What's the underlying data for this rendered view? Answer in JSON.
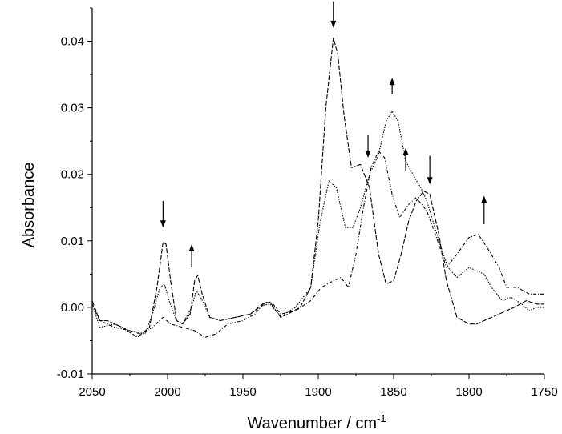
{
  "chart_data": {
    "type": "line",
    "title": "",
    "xlabel": "Wavenumber / cm",
    "xlabel_superscript": "-1",
    "ylabel": "Absorbance",
    "xlim": [
      2050,
      1750
    ],
    "ylim": [
      -0.01,
      0.045
    ],
    "x_reversed": true,
    "grid": false,
    "legend": "none",
    "x_ticks": [
      2050,
      2000,
      1950,
      1900,
      1850,
      1800,
      1750
    ],
    "x_tick_labels": [
      "2050",
      "2000",
      "1950",
      "1900",
      "1850",
      "1800",
      "1750"
    ],
    "y_ticks": [
      -0.01,
      0.0,
      0.01,
      0.02,
      0.03,
      0.04
    ],
    "y_tick_labels": [
      "-0.01",
      "0.00",
      "0.01",
      "0.02",
      "0.03",
      "0.04"
    ],
    "series": [
      {
        "style": "dashed",
        "points": [
          [
            2050,
            0.001
          ],
          [
            2045,
            -0.002
          ],
          [
            2040,
            -0.002
          ],
          [
            2030,
            -0.003
          ],
          [
            2020,
            -0.0045
          ],
          [
            2012,
            -0.003
          ],
          [
            2007,
            0.003
          ],
          [
            2003,
            0.0098
          ],
          [
            2001,
            0.0095
          ],
          [
            1998,
            0.004
          ],
          [
            1994,
            -0.002
          ],
          [
            1990,
            -0.0025
          ],
          [
            1985,
            -0.001
          ],
          [
            1982,
            0.004
          ],
          [
            1980,
            0.0048
          ],
          [
            1977,
            0.002
          ],
          [
            1972,
            -0.0015
          ],
          [
            1965,
            -0.002
          ],
          [
            1955,
            -0.0015
          ],
          [
            1945,
            -0.001
          ],
          [
            1937,
            0.0005
          ],
          [
            1932,
            0.0008
          ],
          [
            1925,
            -0.0015
          ],
          [
            1920,
            -0.001
          ],
          [
            1912,
            0.0
          ],
          [
            1905,
            0.003
          ],
          [
            1900,
            0.013
          ],
          [
            1895,
            0.03
          ],
          [
            1890,
            0.0405
          ],
          [
            1887,
            0.038
          ],
          [
            1883,
            0.029
          ],
          [
            1878,
            0.021
          ],
          [
            1872,
            0.0215
          ],
          [
            1866,
            0.018
          ],
          [
            1860,
            0.008
          ],
          [
            1855,
            0.0035
          ],
          [
            1850,
            0.004
          ],
          [
            1845,
            0.008
          ],
          [
            1840,
            0.013
          ],
          [
            1835,
            0.016
          ],
          [
            1830,
            0.0175
          ],
          [
            1826,
            0.017
          ],
          [
            1820,
            0.011
          ],
          [
            1815,
            0.004
          ],
          [
            1808,
            -0.0015
          ],
          [
            1800,
            -0.0025
          ],
          [
            1795,
            -0.0025
          ],
          [
            1790,
            -0.002
          ],
          [
            1785,
            -0.0015
          ],
          [
            1780,
            -0.001
          ],
          [
            1770,
            0.0
          ],
          [
            1762,
            0.001
          ],
          [
            1755,
            0.0005
          ],
          [
            1750,
            0.0005
          ]
        ]
      },
      {
        "style": "dotted",
        "points": [
          [
            2050,
            0.0005
          ],
          [
            2045,
            -0.003
          ],
          [
            2035,
            -0.0025
          ],
          [
            2025,
            -0.0035
          ],
          [
            2015,
            -0.004
          ],
          [
            2010,
            -0.001
          ],
          [
            2005,
            0.003
          ],
          [
            2002,
            0.0035
          ],
          [
            1999,
            0.001
          ],
          [
            1994,
            -0.002
          ],
          [
            1990,
            -0.0025
          ],
          [
            1984,
            0.0
          ],
          [
            1981,
            0.0025
          ],
          [
            1978,
            0.0015
          ],
          [
            1972,
            -0.0015
          ],
          [
            1965,
            -0.002
          ],
          [
            1955,
            -0.0015
          ],
          [
            1945,
            -0.001
          ],
          [
            1937,
            0.0003
          ],
          [
            1932,
            0.0005
          ],
          [
            1925,
            -0.0013
          ],
          [
            1915,
            0.0
          ],
          [
            1905,
            0.003
          ],
          [
            1899,
            0.0125
          ],
          [
            1893,
            0.019
          ],
          [
            1888,
            0.018
          ],
          [
            1882,
            0.012
          ],
          [
            1877,
            0.012
          ],
          [
            1872,
            0.015
          ],
          [
            1866,
            0.02
          ],
          [
            1860,
            0.023
          ],
          [
            1855,
            0.028
          ],
          [
            1851,
            0.0295
          ],
          [
            1847,
            0.028
          ],
          [
            1842,
            0.022
          ],
          [
            1836,
            0.0195
          ],
          [
            1832,
            0.018
          ],
          [
            1828,
            0.016
          ],
          [
            1820,
            0.01
          ],
          [
            1814,
            0.006
          ],
          [
            1808,
            0.0045
          ],
          [
            1800,
            0.006
          ],
          [
            1795,
            0.0055
          ],
          [
            1790,
            0.005
          ],
          [
            1785,
            0.003
          ],
          [
            1778,
            0.001
          ],
          [
            1772,
            0.0015
          ],
          [
            1765,
            0.0005
          ],
          [
            1760,
            -0.0005
          ],
          [
            1755,
            0.0
          ],
          [
            1750,
            0.0
          ]
        ]
      },
      {
        "style": "dash-dot",
        "points": [
          [
            2050,
            0.0005
          ],
          [
            2045,
            -0.002
          ],
          [
            2035,
            -0.003
          ],
          [
            2025,
            -0.0035
          ],
          [
            2018,
            -0.004
          ],
          [
            2010,
            -0.003
          ],
          [
            2003,
            -0.0015
          ],
          [
            1998,
            -0.0025
          ],
          [
            1990,
            -0.003
          ],
          [
            1982,
            -0.0035
          ],
          [
            1975,
            -0.0045
          ],
          [
            1968,
            -0.004
          ],
          [
            1960,
            -0.0025
          ],
          [
            1950,
            -0.002
          ],
          [
            1942,
            -0.001
          ],
          [
            1935,
            0.0008
          ],
          [
            1930,
            0.0005
          ],
          [
            1925,
            -0.001
          ],
          [
            1915,
            -0.0005
          ],
          [
            1905,
            0.001
          ],
          [
            1898,
            0.003
          ],
          [
            1890,
            0.004
          ],
          [
            1885,
            0.0045
          ],
          [
            1880,
            0.003
          ],
          [
            1875,
            0.008
          ],
          [
            1870,
            0.015
          ],
          [
            1865,
            0.021
          ],
          [
            1860,
            0.0235
          ],
          [
            1856,
            0.0225
          ],
          [
            1851,
            0.017
          ],
          [
            1846,
            0.0135
          ],
          [
            1840,
            0.0155
          ],
          [
            1835,
            0.0165
          ],
          [
            1828,
            0.0145
          ],
          [
            1820,
            0.0095
          ],
          [
            1815,
            0.006
          ],
          [
            1808,
            0.008
          ],
          [
            1800,
            0.0105
          ],
          [
            1794,
            0.011
          ],
          [
            1788,
            0.009
          ],
          [
            1780,
            0.006
          ],
          [
            1775,
            0.003
          ],
          [
            1768,
            0.003
          ],
          [
            1760,
            0.002
          ],
          [
            1755,
            0.002
          ],
          [
            1750,
            0.002
          ]
        ]
      }
    ],
    "annotations": [
      {
        "type": "arrow",
        "direction": "down",
        "x": 2003,
        "y_start": 0.016,
        "y_end": 0.012
      },
      {
        "type": "arrow",
        "direction": "up",
        "x": 1984,
        "y_start": 0.006,
        "y_end": 0.0095
      },
      {
        "type": "arrow",
        "direction": "down",
        "x": 1890,
        "y_start": 0.046,
        "y_end": 0.042
      },
      {
        "type": "arrow",
        "direction": "down",
        "x": 1867,
        "y_start": 0.026,
        "y_end": 0.0225
      },
      {
        "type": "arrow",
        "direction": "up",
        "x": 1851,
        "y_start": 0.032,
        "y_end": 0.0345
      },
      {
        "type": "arrow",
        "direction": "up",
        "x": 1842,
        "y_start": 0.0205,
        "y_end": 0.024
      },
      {
        "type": "arrow",
        "direction": "down",
        "x": 1826,
        "y_start": 0.0228,
        "y_end": 0.0185
      },
      {
        "type": "arrow",
        "direction": "up",
        "x": 1790,
        "y_start": 0.0125,
        "y_end": 0.0168
      }
    ]
  }
}
